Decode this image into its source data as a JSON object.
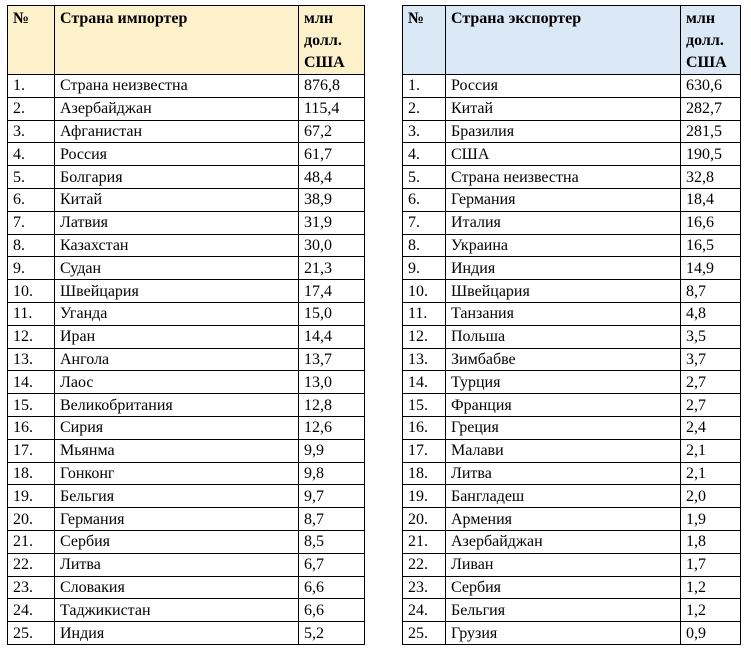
{
  "importers": {
    "header": {
      "num": "№",
      "country": "Страна импортер",
      "value_lines": [
        "млн",
        "долл.",
        "США"
      ]
    },
    "header_color": "#fdf1cc",
    "rows": [
      {
        "num": "1.",
        "country": "Страна неизвестна",
        "value": "876,8"
      },
      {
        "num": "2.",
        "country": "Азербайджан",
        "value": "115,4"
      },
      {
        "num": "3.",
        "country": "Афганистан",
        "value": "67,2"
      },
      {
        "num": "4.",
        "country": "Россия",
        "value": "61,7"
      },
      {
        "num": "5.",
        "country": "Болгария",
        "value": "48,4"
      },
      {
        "num": "6.",
        "country": "Китай",
        "value": "38,9"
      },
      {
        "num": "7.",
        "country": "Латвия",
        "value": "31,9"
      },
      {
        "num": "8.",
        "country": "Казахстан",
        "value": "30,0"
      },
      {
        "num": "9.",
        "country": "Судан",
        "value": "21,3"
      },
      {
        "num": "10.",
        "country": "Швейцария",
        "value": "17,4"
      },
      {
        "num": "11.",
        "country": "Уганда",
        "value": "15,0"
      },
      {
        "num": "12.",
        "country": "Иран",
        "value": "14,4"
      },
      {
        "num": "13.",
        "country": "Ангола",
        "value": "13,7"
      },
      {
        "num": "14.",
        "country": "Лаос",
        "value": "13,0"
      },
      {
        "num": "15.",
        "country": "Великобритания",
        "value": "12,8"
      },
      {
        "num": "16.",
        "country": "Сирия",
        "value": "12,6"
      },
      {
        "num": "17.",
        "country": "Мьянма",
        "value": "9,9"
      },
      {
        "num": "18.",
        "country": "Гонконг",
        "value": "9,8"
      },
      {
        "num": "19.",
        "country": "Бельгия",
        "value": "9,7"
      },
      {
        "num": "20.",
        "country": "Германия",
        "value": "8,7"
      },
      {
        "num": "21.",
        "country": "Сербия",
        "value": "8,5"
      },
      {
        "num": "22.",
        "country": "Литва",
        "value": "6,7"
      },
      {
        "num": "23.",
        "country": "Словакия",
        "value": "6,6"
      },
      {
        "num": "24.",
        "country": "Таджикистан",
        "value": "6,6"
      },
      {
        "num": "25.",
        "country": "Индия",
        "value": "5,2"
      }
    ]
  },
  "exporters": {
    "header": {
      "num": "№",
      "country": "Страна экспортер",
      "value_lines": [
        "млн",
        "долл.",
        "США"
      ]
    },
    "header_color": "#dbe8f6",
    "rows": [
      {
        "num": "1.",
        "country": "Россия",
        "value": "630,6"
      },
      {
        "num": "2.",
        "country": "Китай",
        "value": "282,7"
      },
      {
        "num": "3.",
        "country": "Бразилия",
        "value": "281,5"
      },
      {
        "num": "4.",
        "country": "США",
        "value": "190,5"
      },
      {
        "num": "5.",
        "country": "Страна неизвестна",
        "value": "32,8"
      },
      {
        "num": "6.",
        "country": "Германия",
        "value": "18,4"
      },
      {
        "num": "7.",
        "country": "Италия",
        "value": "16,6"
      },
      {
        "num": "8.",
        "country": "Украина",
        "value": "16,5"
      },
      {
        "num": "9.",
        "country": "Индия",
        "value": "14,9"
      },
      {
        "num": "10.",
        "country": "Швейцария",
        "value": "8,7"
      },
      {
        "num": "11.",
        "country": "Танзания",
        "value": "4,8"
      },
      {
        "num": "12.",
        "country": "Польша",
        "value": "3,5"
      },
      {
        "num": "13.",
        "country": "Зимбабве",
        "value": "3,7"
      },
      {
        "num": "14.",
        "country": "Турция",
        "value": "2,7"
      },
      {
        "num": "15.",
        "country": "Франция",
        "value": "2,7"
      },
      {
        "num": "16.",
        "country": "Греция",
        "value": "2,4"
      },
      {
        "num": "17.",
        "country": "Малави",
        "value": "2,1"
      },
      {
        "num": "18.",
        "country": "Литва",
        "value": "2,1"
      },
      {
        "num": "19.",
        "country": "Бангладеш",
        "value": "2,0"
      },
      {
        "num": "20.",
        "country": "Армения",
        "value": "1,9"
      },
      {
        "num": "21.",
        "country": "Азербайджан",
        "value": "1,8"
      },
      {
        "num": "22.",
        "country": "Ливан",
        "value": "1,7"
      },
      {
        "num": "23.",
        "country": "Сербия",
        "value": "1,2"
      },
      {
        "num": "24.",
        "country": "Бельгия",
        "value": "1,2"
      },
      {
        "num": "25.",
        "country": "Грузия",
        "value": "0,9"
      }
    ]
  }
}
